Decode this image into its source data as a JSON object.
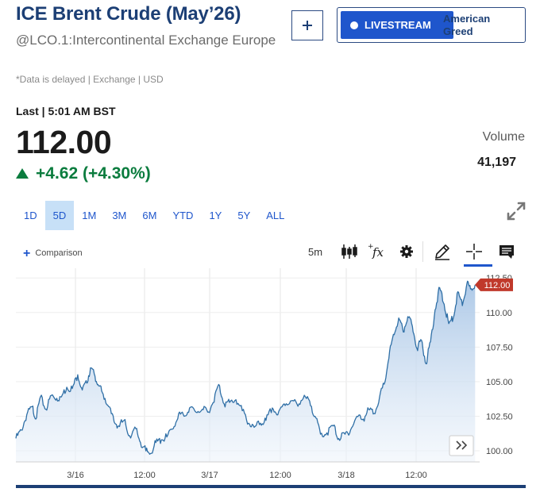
{
  "header": {
    "title": "ICE Brent Crude (May’26)",
    "subtitle": "@LCO.1:Intercontinental Exchange Europe",
    "delayed_note": "*Data is delayed | Exchange | USD"
  },
  "livestream": {
    "label": "LIVESTREAM",
    "show": "American Greed"
  },
  "quote": {
    "last_label": "Last | 5:01 AM BST",
    "price": "112.00",
    "change": "+4.62 (+4.30%)",
    "direction": "up",
    "volume_label": "Volume",
    "volume_value": "41,197"
  },
  "ranges": {
    "items": [
      "1D",
      "5D",
      "1M",
      "3M",
      "6M",
      "YTD",
      "1Y",
      "5Y",
      "ALL"
    ],
    "active": "5D"
  },
  "toolbar": {
    "comparison_label": "Comparison",
    "interval_label": "5m",
    "icons": [
      "candlestick-icon",
      "function-icon",
      "gear-icon",
      "pencil-icon",
      "crosshair-icon",
      "notes-icon"
    ]
  },
  "colors": {
    "brand": "#1c3f75",
    "accent": "#1f56cc",
    "positive": "#0b7c3e",
    "line": "#2f6fa6",
    "price_tag": "#c0392b",
    "range_active_bg": "#c7e0f7"
  },
  "chart_data": {
    "type": "area",
    "x_ticks": [
      "3/16",
      "12:00",
      "3/17",
      "12:00",
      "3/18",
      "12:00"
    ],
    "y_ticks": [
      "100.00",
      "102.50",
      "105.00",
      "107.50",
      "110.00",
      "112.50"
    ],
    "ylim": [
      99.2,
      113.2
    ],
    "current_price_label": "112.00",
    "grid": true,
    "series": [
      {
        "values": [
          [
            0.0,
            100.9
          ],
          [
            0.6,
            101.5
          ],
          [
            1.2,
            102.6
          ],
          [
            1.8,
            103.2
          ],
          [
            2.2,
            102.3
          ],
          [
            2.7,
            103.9
          ],
          [
            3.3,
            103.0
          ],
          [
            3.9,
            104.0
          ],
          [
            4.5,
            103.8
          ],
          [
            5.0,
            103.9
          ],
          [
            5.6,
            104.6
          ],
          [
            6.2,
            104.5
          ],
          [
            6.8,
            105.5
          ],
          [
            7.3,
            104.4
          ],
          [
            7.8,
            104.9
          ],
          [
            8.2,
            106.0
          ],
          [
            8.7,
            105.4
          ],
          [
            9.1,
            104.7
          ],
          [
            9.6,
            104.1
          ],
          [
            10.2,
            103.2
          ],
          [
            10.8,
            102.1
          ],
          [
            11.3,
            101.8
          ],
          [
            11.9,
            102.2
          ],
          [
            12.5,
            101.1
          ],
          [
            13.2,
            101.6
          ],
          [
            13.7,
            100.6
          ],
          [
            14.3,
            100.0
          ],
          [
            14.8,
            99.8
          ],
          [
            15.4,
            100.6
          ],
          [
            16.0,
            100.8
          ],
          [
            16.6,
            101.0
          ],
          [
            17.3,
            101.6
          ],
          [
            17.9,
            102.7
          ],
          [
            18.5,
            102.5
          ],
          [
            19.1,
            103.1
          ],
          [
            19.8,
            102.8
          ],
          [
            20.5,
            103.0
          ],
          [
            21.1,
            102.8
          ],
          [
            21.7,
            103.5
          ],
          [
            22.3,
            104.8
          ],
          [
            22.9,
            103.4
          ],
          [
            23.5,
            103.5
          ],
          [
            24.2,
            103.7
          ],
          [
            24.9,
            102.9
          ],
          [
            25.6,
            102.0
          ],
          [
            26.2,
            101.7
          ],
          [
            26.9,
            102.0
          ],
          [
            27.5,
            102.2
          ],
          [
            28.2,
            103.1
          ],
          [
            28.8,
            102.6
          ],
          [
            29.5,
            103.4
          ],
          [
            30.2,
            103.6
          ],
          [
            30.9,
            103.4
          ],
          [
            31.6,
            103.8
          ],
          [
            32.3,
            103.6
          ],
          [
            32.9,
            102.5
          ],
          [
            33.5,
            101.2
          ],
          [
            34.2,
            101.3
          ],
          [
            34.9,
            101.8
          ],
          [
            35.5,
            100.9
          ],
          [
            36.2,
            101.2
          ],
          [
            36.8,
            101.5
          ],
          [
            37.5,
            102.5
          ],
          [
            38.2,
            102.3
          ],
          [
            38.8,
            103.0
          ],
          [
            39.4,
            102.7
          ],
          [
            40.0,
            103.9
          ],
          [
            40.6,
            105.0
          ],
          [
            41.1,
            107.2
          ],
          [
            41.6,
            108.4
          ],
          [
            42.1,
            109.6
          ],
          [
            42.6,
            108.6
          ],
          [
            43.1,
            109.7
          ],
          [
            43.6,
            109.0
          ],
          [
            44.1,
            107.4
          ],
          [
            44.6,
            108.0
          ],
          [
            45.1,
            106.3
          ],
          [
            45.6,
            107.9
          ],
          [
            46.1,
            110.2
          ],
          [
            46.6,
            111.8
          ],
          [
            47.1,
            110.6
          ],
          [
            47.6,
            109.2
          ],
          [
            48.1,
            109.6
          ],
          [
            48.6,
            111.5
          ],
          [
            49.1,
            110.5
          ],
          [
            49.6,
            112.1
          ],
          [
            50.0,
            111.7
          ],
          [
            50.5,
            112.0
          ]
        ]
      }
    ]
  }
}
